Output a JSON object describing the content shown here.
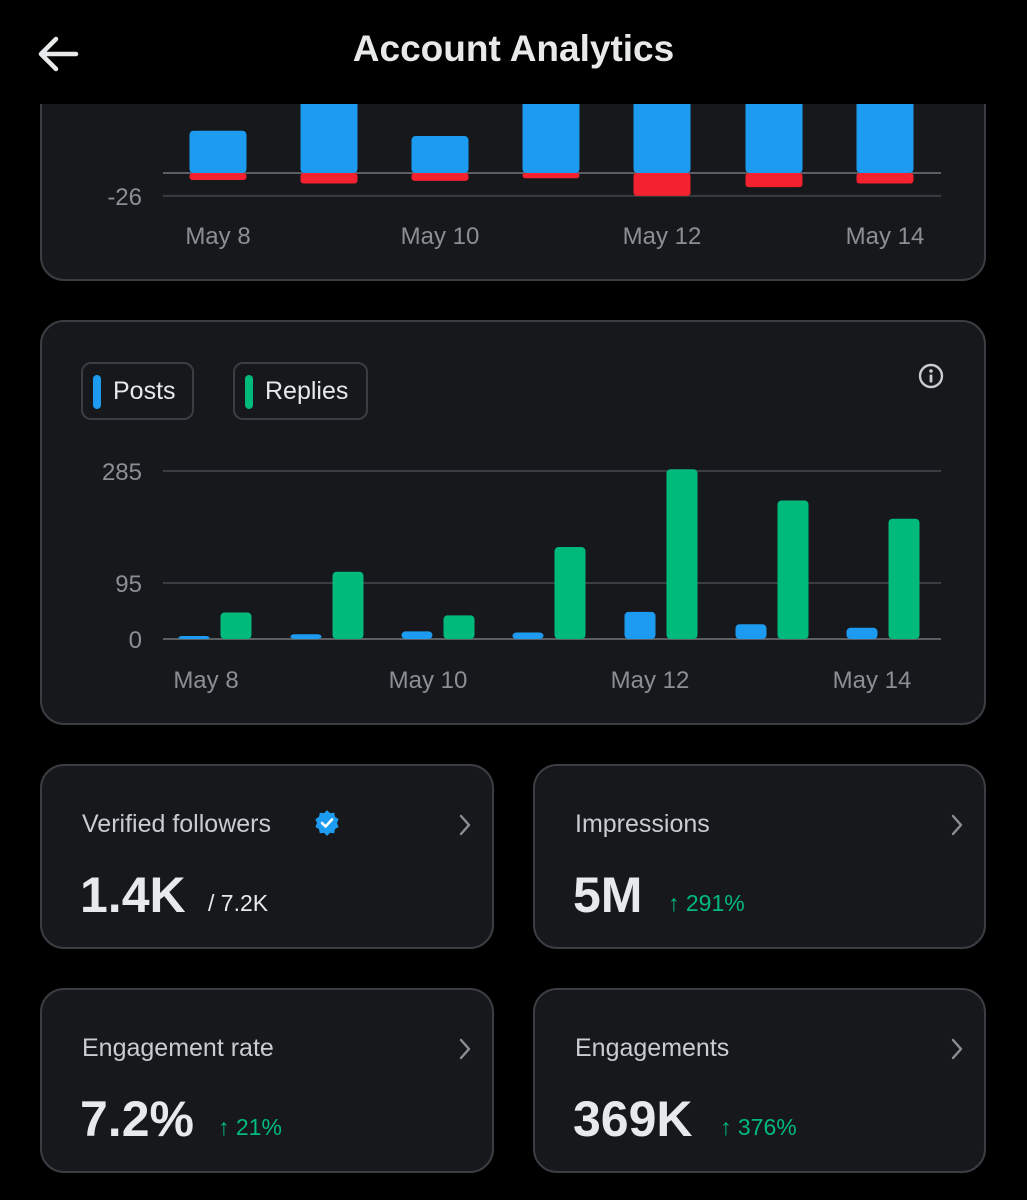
{
  "header": {
    "title": "Account Analytics",
    "back_icon": "arrow-left-icon"
  },
  "colors": {
    "posts": "#1d9bf0",
    "replies": "#00ba7c",
    "negative": "#f4212e",
    "up": "#00ba7c",
    "verified": "#1d9bf0"
  },
  "chart_data": [
    {
      "type": "bar",
      "stacked": true,
      "categories": [
        "May 8",
        "May 9",
        "May 10",
        "May 11",
        "May 12",
        "May 13",
        "May 14"
      ],
      "x_tick_labels": [
        "May 8",
        "May 10",
        "May 12",
        "May 14"
      ],
      "y_tick_labels": [
        "-26"
      ],
      "series": [
        {
          "color": "#1d9bf0",
          "values": [
            48,
            120,
            42,
            150,
            170,
            140,
            130
          ]
        },
        {
          "color": "#f4212e",
          "values": [
            -8,
            -12,
            -9,
            -6,
            -26,
            -16,
            -12
          ]
        }
      ],
      "note_partially_scrolled": true
    },
    {
      "type": "bar",
      "categories": [
        "May 8",
        "May 9",
        "May 10",
        "May 11",
        "May 12",
        "May 13",
        "May 14"
      ],
      "x_tick_labels": [
        "May 8",
        "May 10",
        "May 12",
        "May 14"
      ],
      "y_tick_labels": [
        "285",
        "95",
        "0"
      ],
      "ylim": [
        0,
        285
      ],
      "grid": true,
      "series": [
        {
          "name": "Posts",
          "color": "#1d9bf0",
          "values": [
            5,
            8,
            13,
            11,
            46,
            25,
            19
          ]
        },
        {
          "name": "Replies",
          "color": "#00ba7c",
          "values": [
            45,
            114,
            40,
            156,
            288,
            235,
            204
          ]
        }
      ],
      "legend_position": "top-left"
    }
  ],
  "legend": {
    "posts_label": "Posts",
    "replies_label": "Replies",
    "info_icon": "info-icon"
  },
  "stats": {
    "verified_followers": {
      "label": "Verified followers",
      "value": "1.4K",
      "sub": "/ 7.2K"
    },
    "impressions": {
      "label": "Impressions",
      "value": "5M",
      "delta": "↑ 291%"
    },
    "engagement_rate": {
      "label": "Engagement rate",
      "value": "7.2%",
      "delta": "↑ 21%"
    },
    "engagements": {
      "label": "Engagements",
      "value": "369K",
      "delta": "↑ 376%"
    }
  }
}
